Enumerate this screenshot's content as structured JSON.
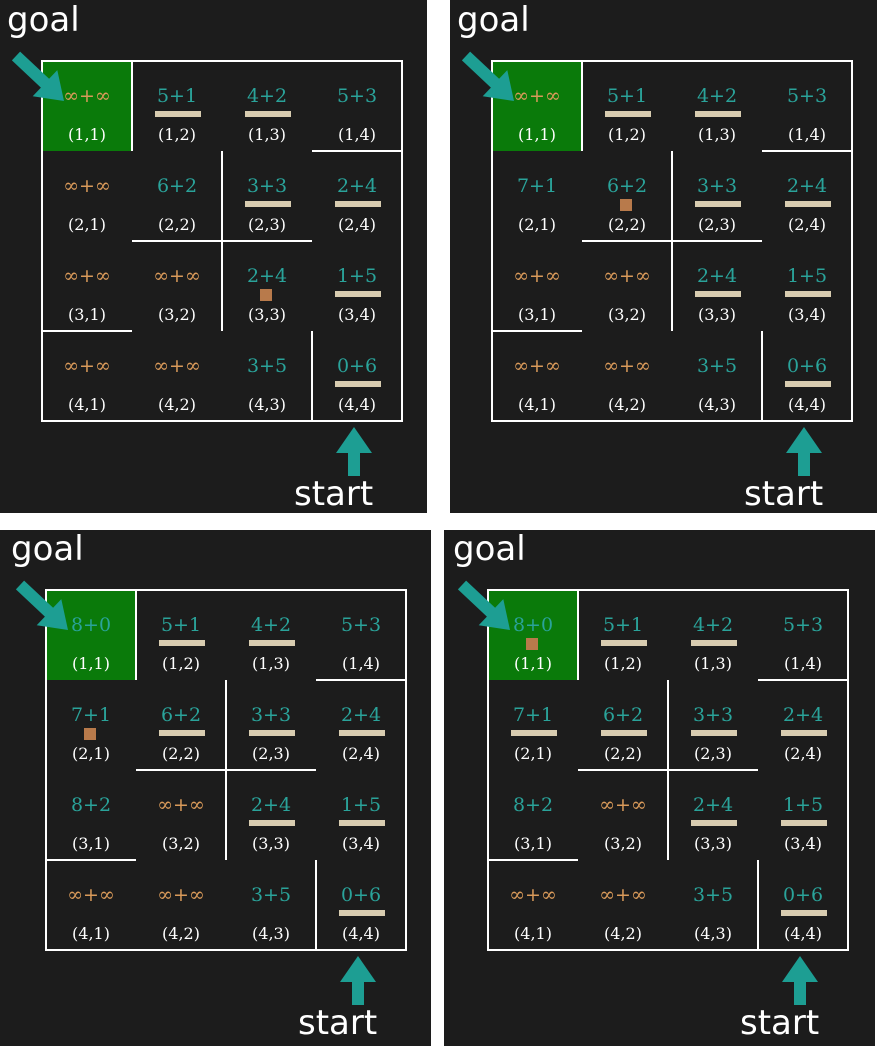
{
  "colors": {
    "background": "#1c1c1c",
    "wall": "#ffffff",
    "goal_cell": "#0a7a0a",
    "teal_text": "#2aa39a",
    "infinite_text": "#d99a5a",
    "arrow": "#1d9e93",
    "bar": "#d8ccb0",
    "marker": "#b87a4b"
  },
  "panels": [
    {
      "goal_label": "goal",
      "start_label": "start",
      "cells": [
        {
          "coord": "(1,1)",
          "score": "∞+∞",
          "kind": "inf",
          "goal": true
        },
        {
          "coord": "(1,2)",
          "score": "5+1",
          "kind": "num",
          "bar": true
        },
        {
          "coord": "(1,3)",
          "score": "4+2",
          "kind": "num",
          "bar": true
        },
        {
          "coord": "(1,4)",
          "score": "5+3",
          "kind": "num"
        },
        {
          "coord": "(2,1)",
          "score": "∞+∞",
          "kind": "inf"
        },
        {
          "coord": "(2,2)",
          "score": "6+2",
          "kind": "num"
        },
        {
          "coord": "(2,3)",
          "score": "3+3",
          "kind": "num",
          "bar": true
        },
        {
          "coord": "(2,4)",
          "score": "2+4",
          "kind": "num",
          "bar": true
        },
        {
          "coord": "(3,1)",
          "score": "∞+∞",
          "kind": "inf"
        },
        {
          "coord": "(3,2)",
          "score": "∞+∞",
          "kind": "inf"
        },
        {
          "coord": "(3,3)",
          "score": "2+4",
          "kind": "num",
          "marker": true
        },
        {
          "coord": "(3,4)",
          "score": "1+5",
          "kind": "num",
          "bar": true
        },
        {
          "coord": "(4,1)",
          "score": "∞+∞",
          "kind": "inf"
        },
        {
          "coord": "(4,2)",
          "score": "∞+∞",
          "kind": "inf"
        },
        {
          "coord": "(4,3)",
          "score": "3+5",
          "kind": "num"
        },
        {
          "coord": "(4,4)",
          "score": "0+6",
          "kind": "num",
          "bar": true
        }
      ]
    },
    {
      "goal_label": "goal",
      "start_label": "start",
      "cells": [
        {
          "coord": "(1,1)",
          "score": "∞+∞",
          "kind": "inf",
          "goal": true
        },
        {
          "coord": "(1,2)",
          "score": "5+1",
          "kind": "num",
          "bar": true
        },
        {
          "coord": "(1,3)",
          "score": "4+2",
          "kind": "num",
          "bar": true
        },
        {
          "coord": "(1,4)",
          "score": "5+3",
          "kind": "num"
        },
        {
          "coord": "(2,1)",
          "score": "7+1",
          "kind": "num"
        },
        {
          "coord": "(2,2)",
          "score": "6+2",
          "kind": "num",
          "marker": true
        },
        {
          "coord": "(2,3)",
          "score": "3+3",
          "kind": "num",
          "bar": true
        },
        {
          "coord": "(2,4)",
          "score": "2+4",
          "kind": "num",
          "bar": true
        },
        {
          "coord": "(3,1)",
          "score": "∞+∞",
          "kind": "inf"
        },
        {
          "coord": "(3,2)",
          "score": "∞+∞",
          "kind": "inf"
        },
        {
          "coord": "(3,3)",
          "score": "2+4",
          "kind": "num",
          "bar": true
        },
        {
          "coord": "(3,4)",
          "score": "1+5",
          "kind": "num",
          "bar": true
        },
        {
          "coord": "(4,1)",
          "score": "∞+∞",
          "kind": "inf"
        },
        {
          "coord": "(4,2)",
          "score": "∞+∞",
          "kind": "inf"
        },
        {
          "coord": "(4,3)",
          "score": "3+5",
          "kind": "num"
        },
        {
          "coord": "(4,4)",
          "score": "0+6",
          "kind": "num",
          "bar": true
        }
      ]
    },
    {
      "goal_label": "goal",
      "start_label": "start",
      "cells": [
        {
          "coord": "(1,1)",
          "score": "8+0",
          "kind": "num",
          "goal": true
        },
        {
          "coord": "(1,2)",
          "score": "5+1",
          "kind": "num",
          "bar": true
        },
        {
          "coord": "(1,3)",
          "score": "4+2",
          "kind": "num",
          "bar": true
        },
        {
          "coord": "(1,4)",
          "score": "5+3",
          "kind": "num"
        },
        {
          "coord": "(2,1)",
          "score": "7+1",
          "kind": "num",
          "marker": true
        },
        {
          "coord": "(2,2)",
          "score": "6+2",
          "kind": "num",
          "bar": true
        },
        {
          "coord": "(2,3)",
          "score": "3+3",
          "kind": "num",
          "bar": true
        },
        {
          "coord": "(2,4)",
          "score": "2+4",
          "kind": "num",
          "bar": true
        },
        {
          "coord": "(3,1)",
          "score": "8+2",
          "kind": "num"
        },
        {
          "coord": "(3,2)",
          "score": "∞+∞",
          "kind": "inf"
        },
        {
          "coord": "(3,3)",
          "score": "2+4",
          "kind": "num",
          "bar": true
        },
        {
          "coord": "(3,4)",
          "score": "1+5",
          "kind": "num",
          "bar": true
        },
        {
          "coord": "(4,1)",
          "score": "∞+∞",
          "kind": "inf"
        },
        {
          "coord": "(4,2)",
          "score": "∞+∞",
          "kind": "inf"
        },
        {
          "coord": "(4,3)",
          "score": "3+5",
          "kind": "num"
        },
        {
          "coord": "(4,4)",
          "score": "0+6",
          "kind": "num",
          "bar": true
        }
      ]
    },
    {
      "goal_label": "goal",
      "start_label": "start",
      "cells": [
        {
          "coord": "(1,1)",
          "score": "8+0",
          "kind": "num",
          "goal": true,
          "marker": true
        },
        {
          "coord": "(1,2)",
          "score": "5+1",
          "kind": "num",
          "bar": true
        },
        {
          "coord": "(1,3)",
          "score": "4+2",
          "kind": "num",
          "bar": true
        },
        {
          "coord": "(1,4)",
          "score": "5+3",
          "kind": "num"
        },
        {
          "coord": "(2,1)",
          "score": "7+1",
          "kind": "num",
          "bar": true
        },
        {
          "coord": "(2,2)",
          "score": "6+2",
          "kind": "num",
          "bar": true
        },
        {
          "coord": "(2,3)",
          "score": "3+3",
          "kind": "num",
          "bar": true
        },
        {
          "coord": "(2,4)",
          "score": "2+4",
          "kind": "num",
          "bar": true
        },
        {
          "coord": "(3,1)",
          "score": "8+2",
          "kind": "num"
        },
        {
          "coord": "(3,2)",
          "score": "∞+∞",
          "kind": "inf"
        },
        {
          "coord": "(3,3)",
          "score": "2+4",
          "kind": "num",
          "bar": true
        },
        {
          "coord": "(3,4)",
          "score": "1+5",
          "kind": "num",
          "bar": true
        },
        {
          "coord": "(4,1)",
          "score": "∞+∞",
          "kind": "inf"
        },
        {
          "coord": "(4,2)",
          "score": "∞+∞",
          "kind": "inf"
        },
        {
          "coord": "(4,3)",
          "score": "3+5",
          "kind": "num"
        },
        {
          "coord": "(4,4)",
          "score": "0+6",
          "kind": "num",
          "bar": true
        }
      ]
    }
  ]
}
